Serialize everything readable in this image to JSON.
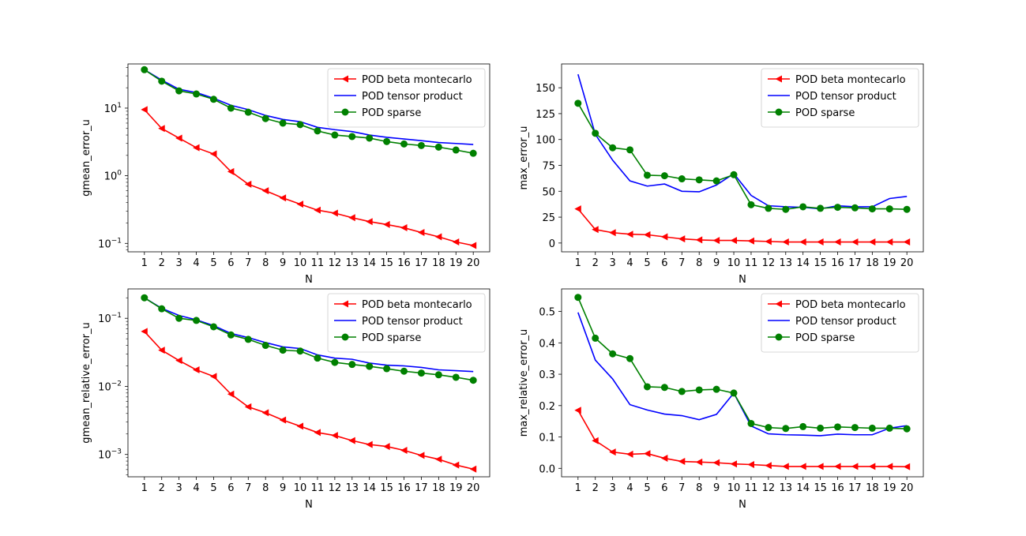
{
  "colors": {
    "beta": "#ff0000",
    "tensor": "#0000ff",
    "sparse": "#008000"
  },
  "chart_data": [
    {
      "type": "line",
      "scale": "log",
      "ylabel": "gmean_error_u",
      "xlabel": "N",
      "x": [
        1,
        2,
        3,
        4,
        5,
        6,
        7,
        8,
        9,
        10,
        11,
        12,
        13,
        14,
        15,
        16,
        17,
        18,
        19,
        20
      ],
      "ylim": [
        0.075,
        45
      ],
      "yticks": [
        {
          "v": 0.1,
          "base": "10",
          "exp": "−1"
        },
        {
          "v": 1,
          "base": "10",
          "exp": "0"
        },
        {
          "v": 10,
          "base": "10",
          "exp": "1"
        }
      ],
      "legend": "top-right",
      "series": [
        {
          "name": "POD beta montecarlo",
          "values": [
            9.5,
            5.0,
            3.6,
            2.6,
            2.1,
            1.15,
            0.75,
            0.6,
            0.47,
            0.38,
            0.31,
            0.28,
            0.24,
            0.21,
            0.19,
            0.17,
            0.145,
            0.125,
            0.105,
            0.093
          ]
        },
        {
          "name": "POD tensor product",
          "values": [
            37,
            26,
            19,
            17,
            14,
            11,
            9.5,
            7.8,
            6.8,
            6.3,
            5.2,
            4.8,
            4.5,
            4.0,
            3.7,
            3.5,
            3.3,
            3.1,
            3.0,
            2.9
          ]
        },
        {
          "name": "POD sparse",
          "values": [
            37,
            25,
            18,
            16.2,
            13.5,
            10,
            8.7,
            7.0,
            6.0,
            5.7,
            4.6,
            4.0,
            3.8,
            3.6,
            3.2,
            2.95,
            2.8,
            2.65,
            2.4,
            2.15
          ]
        }
      ]
    },
    {
      "type": "line",
      "scale": "linear",
      "ylabel": "max_error_u",
      "xlabel": "N",
      "x": [
        1,
        2,
        3,
        4,
        5,
        6,
        7,
        8,
        9,
        10,
        11,
        12,
        13,
        14,
        15,
        16,
        17,
        18,
        19,
        20
      ],
      "ylim": [
        -8.5,
        173
      ],
      "yticks": [
        {
          "v": 0,
          "label": "0"
        },
        {
          "v": 25,
          "label": "25"
        },
        {
          "v": 50,
          "label": "50"
        },
        {
          "v": 75,
          "label": "75"
        },
        {
          "v": 100,
          "label": "100"
        },
        {
          "v": 125,
          "label": "125"
        },
        {
          "v": 150,
          "label": "150"
        }
      ],
      "legend": "top-right",
      "series": [
        {
          "name": "POD beta montecarlo",
          "values": [
            33,
            13,
            10,
            8.5,
            8,
            6,
            4,
            3,
            2.5,
            2.5,
            2,
            1.5,
            1,
            1,
            1,
            1,
            1,
            1,
            1,
            1
          ]
        },
        {
          "name": "POD tensor product",
          "values": [
            163,
            105,
            80,
            60,
            55,
            57,
            50,
            49.5,
            56,
            67,
            46,
            36,
            35,
            34.5,
            33,
            36,
            35,
            35,
            43,
            45
          ]
        },
        {
          "name": "POD sparse",
          "values": [
            135,
            106,
            92,
            90,
            65.5,
            65,
            62,
            61,
            60,
            66,
            37,
            33.5,
            32.5,
            35,
            33.5,
            34.5,
            34,
            33,
            33,
            32.5
          ]
        }
      ]
    },
    {
      "type": "line",
      "scale": "log",
      "ylabel": "gmean_relative_error_u",
      "xlabel": "N",
      "x": [
        1,
        2,
        3,
        4,
        5,
        6,
        7,
        8,
        9,
        10,
        11,
        12,
        13,
        14,
        15,
        16,
        17,
        18,
        19,
        20
      ],
      "ylim": [
        0.00047,
        0.27
      ],
      "yticks": [
        {
          "v": 0.001,
          "base": "10",
          "exp": "−3"
        },
        {
          "v": 0.01,
          "base": "10",
          "exp": "−2"
        },
        {
          "v": 0.1,
          "base": "10",
          "exp": "−1"
        }
      ],
      "legend": "top-right",
      "series": [
        {
          "name": "POD beta montecarlo",
          "values": [
            0.064,
            0.034,
            0.024,
            0.0175,
            0.014,
            0.0077,
            0.005,
            0.0041,
            0.0032,
            0.0026,
            0.0021,
            0.0019,
            0.0016,
            0.0014,
            0.00131,
            0.00115,
            0.00097,
            0.00085,
            0.0007,
            0.00061
          ]
        },
        {
          "name": "POD tensor product",
          "values": [
            0.2,
            0.14,
            0.11,
            0.095,
            0.078,
            0.06,
            0.052,
            0.044,
            0.038,
            0.036,
            0.029,
            0.026,
            0.025,
            0.022,
            0.0205,
            0.02,
            0.019,
            0.0175,
            0.017,
            0.0165
          ]
        },
        {
          "name": "POD sparse",
          "values": [
            0.2,
            0.138,
            0.1,
            0.093,
            0.075,
            0.057,
            0.049,
            0.04,
            0.034,
            0.033,
            0.026,
            0.0225,
            0.021,
            0.0197,
            0.0182,
            0.0167,
            0.0157,
            0.0148,
            0.0136,
            0.0123
          ]
        }
      ]
    },
    {
      "type": "line",
      "scale": "linear",
      "ylabel": "max_relative_error_u",
      "xlabel": "N",
      "x": [
        1,
        2,
        3,
        4,
        5,
        6,
        7,
        8,
        9,
        10,
        11,
        12,
        13,
        14,
        15,
        16,
        17,
        18,
        19,
        20
      ],
      "ylim": [
        -0.027,
        0.572
      ],
      "yticks": [
        {
          "v": 0.0,
          "label": "0.0"
        },
        {
          "v": 0.1,
          "label": "0.1"
        },
        {
          "v": 0.2,
          "label": "0.2"
        },
        {
          "v": 0.3,
          "label": "0.3"
        },
        {
          "v": 0.4,
          "label": "0.4"
        },
        {
          "v": 0.5,
          "label": "0.5"
        }
      ],
      "legend": "top-right",
      "series": [
        {
          "name": "POD beta montecarlo",
          "values": [
            0.185,
            0.088,
            0.052,
            0.045,
            0.047,
            0.032,
            0.022,
            0.02,
            0.018,
            0.014,
            0.012,
            0.009,
            0.006,
            0.006,
            0.006,
            0.006,
            0.006,
            0.006,
            0.006,
            0.005
          ]
        },
        {
          "name": "POD tensor product",
          "values": [
            0.497,
            0.345,
            0.285,
            0.203,
            0.186,
            0.173,
            0.168,
            0.155,
            0.172,
            0.24,
            0.135,
            0.11,
            0.107,
            0.106,
            0.104,
            0.109,
            0.107,
            0.107,
            0.128,
            0.136
          ]
        },
        {
          "name": "POD sparse",
          "values": [
            0.545,
            0.415,
            0.365,
            0.35,
            0.26,
            0.258,
            0.245,
            0.25,
            0.252,
            0.24,
            0.143,
            0.13,
            0.127,
            0.133,
            0.128,
            0.132,
            0.13,
            0.128,
            0.128,
            0.126
          ]
        }
      ]
    }
  ]
}
